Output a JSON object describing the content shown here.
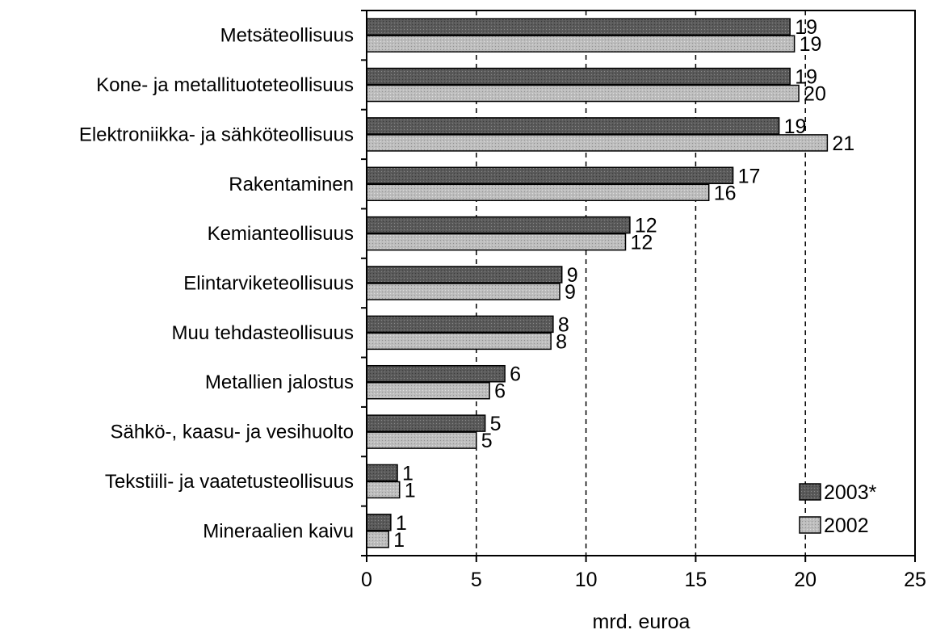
{
  "chart_data": {
    "type": "bar",
    "orientation": "horizontal",
    "categories": [
      "Metsäteollisuus",
      "Kone- ja metallituoteteollisuus",
      "Elektroniikka- ja sähköteollisuus",
      "Rakentaminen",
      "Kemianteollisuus",
      "Elintarviketeollisuus",
      "Muu tehdasteollisuus",
      "Metallien jalostus",
      "Sähkö-, kaasu- ja vesihuolto",
      "Tekstiili- ja vaatetusteollisuus",
      "Mineraalien kaivu"
    ],
    "series": [
      {
        "name": "2003*",
        "color": "#555555",
        "values": [
          19.3,
          19.3,
          18.8,
          16.7,
          12.0,
          8.9,
          8.5,
          6.3,
          5.4,
          1.4,
          1.1
        ],
        "labels": [
          "19",
          "19",
          "19",
          "17",
          "12",
          "9",
          "8",
          "6",
          "5",
          "1",
          "1"
        ]
      },
      {
        "name": "2002",
        "color": "#b8b8b8",
        "values": [
          19.5,
          19.7,
          21.0,
          15.6,
          11.8,
          8.8,
          8.4,
          5.6,
          5.0,
          1.5,
          1.0
        ],
        "labels": [
          "19",
          "20",
          "21",
          "16",
          "12",
          "9",
          "8",
          "6",
          "5",
          "1",
          "1"
        ]
      }
    ],
    "xlabel": "mrd. euroa",
    "xlim": [
      0,
      25
    ],
    "xticks": [
      0,
      5,
      10,
      15,
      20,
      25
    ],
    "grid": "vertical-dashed",
    "legend_position": "bottom-right"
  }
}
